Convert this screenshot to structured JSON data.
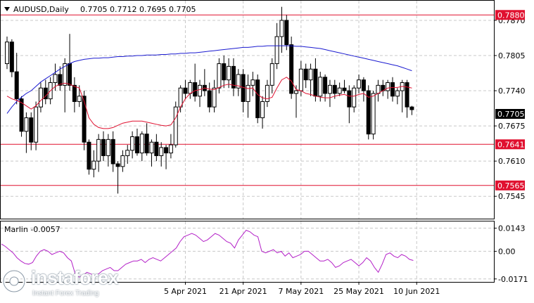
{
  "chart_data": [
    {
      "type": "candlestick",
      "symbol_label": "AUDUSD,Daily",
      "ohlc_label": "0.7705 0.7712 0.7695 0.7705",
      "ylim": [
        0.7505,
        0.7905
      ],
      "y_ticks": [
        "0.7870",
        "0.7805",
        "0.7740",
        "0.7675",
        "0.7610",
        "0.7545"
      ],
      "x_ticks": [
        {
          "label": "5 Apr 2021",
          "index": 37
        },
        {
          "label": "21 Apr 2021",
          "index": 49
        },
        {
          "label": "7 May 2021",
          "index": 61
        },
        {
          "label": "25 May 2021",
          "index": 73
        },
        {
          "label": "10 Jun 2021",
          "index": 85
        }
      ],
      "current_price": "0.7705",
      "horizontal_levels": [
        {
          "value": 0.788,
          "label": "0.7880"
        },
        {
          "value": 0.7641,
          "label": "0.7641"
        },
        {
          "value": 0.7565,
          "label": "0.7565"
        }
      ],
      "colors": {
        "bull": "#ffffff",
        "bear": "#000000",
        "ma_fast": "#e0102f",
        "ma_slow": "#1a1ad0",
        "level": "#e0102f",
        "oscillator": "#b31fc7",
        "grid": "#c8c8c8"
      },
      "candles": [
        [
          0.779,
          0.784,
          0.778,
          0.783
        ],
        [
          0.783,
          0.7835,
          0.7765,
          0.7775
        ],
        [
          0.7775,
          0.781,
          0.7715,
          0.7725
        ],
        [
          0.7725,
          0.773,
          0.7655,
          0.7665
        ],
        [
          0.7665,
          0.77,
          0.7625,
          0.769
        ],
        [
          0.769,
          0.77,
          0.763,
          0.7645
        ],
        [
          0.7645,
          0.772,
          0.763,
          0.771
        ],
        [
          0.771,
          0.7755,
          0.77,
          0.7745
        ],
        [
          0.7745,
          0.776,
          0.7715,
          0.7725
        ],
        [
          0.7725,
          0.7765,
          0.7715,
          0.7755
        ],
        [
          0.7755,
          0.779,
          0.774,
          0.777
        ],
        [
          0.777,
          0.7785,
          0.774,
          0.775
        ],
        [
          0.775,
          0.78,
          0.77,
          0.779
        ],
        [
          0.779,
          0.7845,
          0.774,
          0.775
        ],
        [
          0.775,
          0.7765,
          0.77,
          0.772
        ],
        [
          0.772,
          0.775,
          0.771,
          0.773
        ],
        [
          0.773,
          0.774,
          0.763,
          0.7645
        ],
        [
          0.7645,
          0.765,
          0.7585,
          0.7595
        ],
        [
          0.7595,
          0.763,
          0.758,
          0.761
        ],
        [
          0.761,
          0.766,
          0.759,
          0.765
        ],
        [
          0.765,
          0.7665,
          0.761,
          0.762
        ],
        [
          0.762,
          0.766,
          0.76,
          0.765
        ],
        [
          0.765,
          0.7665,
          0.759,
          0.7605
        ],
        [
          0.7605,
          0.761,
          0.755,
          0.76
        ],
        [
          0.76,
          0.763,
          0.759,
          0.762
        ],
        [
          0.762,
          0.764,
          0.7605,
          0.763
        ],
        [
          0.763,
          0.7665,
          0.7615,
          0.7655
        ],
        [
          0.7655,
          0.767,
          0.762,
          0.7625
        ],
        [
          0.7625,
          0.7665,
          0.761,
          0.766
        ],
        [
          0.766,
          0.768,
          0.762,
          0.7625
        ],
        [
          0.7625,
          0.765,
          0.76,
          0.7645
        ],
        [
          0.7645,
          0.766,
          0.761,
          0.762
        ],
        [
          0.762,
          0.7645,
          0.76,
          0.7635
        ],
        [
          0.7635,
          0.764,
          0.7595,
          0.7625
        ],
        [
          0.7625,
          0.766,
          0.7615,
          0.764
        ],
        [
          0.764,
          0.772,
          0.7635,
          0.771
        ],
        [
          0.771,
          0.775,
          0.77,
          0.7745
        ],
        [
          0.7745,
          0.776,
          0.7725,
          0.7735
        ],
        [
          0.7735,
          0.776,
          0.7725,
          0.7755
        ],
        [
          0.7755,
          0.779,
          0.772,
          0.773
        ],
        [
          0.773,
          0.776,
          0.771,
          0.775
        ],
        [
          0.775,
          0.778,
          0.773,
          0.774
        ],
        [
          0.774,
          0.7755,
          0.77,
          0.771
        ],
        [
          0.771,
          0.776,
          0.77,
          0.7745
        ],
        [
          0.7745,
          0.78,
          0.7735,
          0.779
        ],
        [
          0.779,
          0.7805,
          0.7745,
          0.776
        ],
        [
          0.776,
          0.78,
          0.7745,
          0.7785
        ],
        [
          0.7785,
          0.78,
          0.773,
          0.7745
        ],
        [
          0.7745,
          0.778,
          0.773,
          0.777
        ],
        [
          0.777,
          0.778,
          0.77,
          0.772
        ],
        [
          0.772,
          0.777,
          0.769,
          0.775
        ],
        [
          0.775,
          0.7775,
          0.773,
          0.776
        ],
        [
          0.776,
          0.777,
          0.768,
          0.769
        ],
        [
          0.769,
          0.773,
          0.767,
          0.772
        ],
        [
          0.772,
          0.776,
          0.771,
          0.775
        ],
        [
          0.775,
          0.78,
          0.7735,
          0.779
        ],
        [
          0.779,
          0.7865,
          0.778,
          0.784
        ],
        [
          0.784,
          0.7895,
          0.781,
          0.787
        ],
        [
          0.787,
          0.788,
          0.7815,
          0.7825
        ],
        [
          0.7825,
          0.784,
          0.7725,
          0.7735
        ],
        [
          0.7735,
          0.775,
          0.769,
          0.774
        ],
        [
          0.774,
          0.7795,
          0.773,
          0.778
        ],
        [
          0.778,
          0.779,
          0.7745,
          0.776
        ],
        [
          0.776,
          0.779,
          0.773,
          0.778
        ],
        [
          0.778,
          0.78,
          0.772,
          0.773
        ],
        [
          0.773,
          0.7775,
          0.772,
          0.7765
        ],
        [
          0.7765,
          0.777,
          0.772,
          0.7735
        ],
        [
          0.7735,
          0.776,
          0.771,
          0.775
        ],
        [
          0.775,
          0.776,
          0.7725,
          0.7735
        ],
        [
          0.7735,
          0.7755,
          0.773,
          0.7745
        ],
        [
          0.7745,
          0.776,
          0.7735,
          0.774
        ],
        [
          0.774,
          0.775,
          0.768,
          0.771
        ],
        [
          0.771,
          0.775,
          0.77,
          0.7745
        ],
        [
          0.7745,
          0.777,
          0.7735,
          0.776
        ],
        [
          0.776,
          0.7765,
          0.772,
          0.774
        ],
        [
          0.774,
          0.775,
          0.765,
          0.766
        ],
        [
          0.766,
          0.774,
          0.765,
          0.7735
        ],
        [
          0.7735,
          0.776,
          0.772,
          0.775
        ],
        [
          0.775,
          0.776,
          0.773,
          0.774
        ],
        [
          0.774,
          0.776,
          0.7725,
          0.7755
        ],
        [
          0.7755,
          0.7765,
          0.772,
          0.773
        ],
        [
          0.773,
          0.7745,
          0.7715,
          0.774
        ],
        [
          0.774,
          0.776,
          0.77,
          0.7755
        ],
        [
          0.7755,
          0.776,
          0.769,
          0.771
        ],
        [
          0.771,
          0.7712,
          0.7695,
          0.7705
        ]
      ],
      "ma_fast": [
        0.773,
        0.7725,
        0.7722,
        0.7718,
        0.7712,
        0.7706,
        0.7712,
        0.7722,
        0.773,
        0.774,
        0.7748,
        0.7752,
        0.7754,
        0.7752,
        0.7748,
        0.7745,
        0.772,
        0.769,
        0.7678,
        0.7672,
        0.767,
        0.767,
        0.7672,
        0.7676,
        0.768,
        0.7682,
        0.7684,
        0.7684,
        0.7684,
        0.7682,
        0.768,
        0.7678,
        0.7676,
        0.7675,
        0.7677,
        0.769,
        0.771,
        0.7725,
        0.7735,
        0.774,
        0.7742,
        0.7745,
        0.7743,
        0.7742,
        0.7746,
        0.775,
        0.7752,
        0.775,
        0.7749,
        0.7746,
        0.7744,
        0.7745,
        0.7733,
        0.7727,
        0.7725,
        0.7728,
        0.7745,
        0.776,
        0.7765,
        0.7758,
        0.7742,
        0.774,
        0.7735,
        0.7733,
        0.773,
        0.7728,
        0.7727,
        0.7727,
        0.773,
        0.7732,
        0.7733,
        0.773,
        0.773,
        0.7733,
        0.7735,
        0.7728,
        0.773,
        0.7735,
        0.774,
        0.7745,
        0.7746,
        0.7746,
        0.7748,
        0.7747,
        0.7745
      ],
      "ma_slow": [
        0.7698,
        0.771,
        0.772,
        0.7728,
        0.7735,
        0.774,
        0.7748,
        0.7756,
        0.7762,
        0.7768,
        0.7774,
        0.778,
        0.7785,
        0.779,
        0.7794,
        0.7796,
        0.7798,
        0.7799,
        0.78,
        0.78,
        0.7801,
        0.7801,
        0.7802,
        0.7803,
        0.7803,
        0.7804,
        0.7804,
        0.7805,
        0.7805,
        0.7806,
        0.7806,
        0.7806,
        0.7807,
        0.7807,
        0.7808,
        0.7808,
        0.7809,
        0.7809,
        0.781,
        0.781,
        0.7811,
        0.7812,
        0.7813,
        0.7814,
        0.7815,
        0.7816,
        0.7817,
        0.7818,
        0.7819,
        0.782,
        0.782,
        0.7821,
        0.7822,
        0.7822,
        0.7823,
        0.7823,
        0.7823,
        0.7823,
        0.7823,
        0.7823,
        0.7822,
        0.7822,
        0.7821,
        0.782,
        0.7819,
        0.7818,
        0.7816,
        0.7814,
        0.7812,
        0.781,
        0.7808,
        0.7806,
        0.7804,
        0.7802,
        0.78,
        0.7798,
        0.7796,
        0.7794,
        0.7792,
        0.779,
        0.7788,
        0.7786,
        0.7783,
        0.778,
        0.7777
      ]
    },
    {
      "type": "line",
      "indicator_label": "Marlin -0.0057",
      "ylim": [
        -0.0185,
        0.018
      ],
      "y_ticks": [
        "0.0143",
        "0.00",
        "-0.0171"
      ],
      "values": [
        0.0045,
        0.003,
        0.001,
        -0.001,
        -0.004,
        -0.006,
        -0.0075,
        -0.008,
        -0.007,
        -0.003,
        0.0,
        0.001,
        0.0,
        -0.002,
        -0.001,
        0.0,
        -0.001,
        -0.004,
        -0.006,
        -0.014,
        -0.016,
        -0.015,
        -0.013,
        -0.014,
        -0.015,
        -0.014,
        -0.012,
        -0.011,
        -0.01,
        -0.012,
        -0.012,
        -0.01,
        -0.008,
        -0.007,
        -0.006,
        -0.006,
        -0.005,
        -0.007,
        -0.005,
        -0.004,
        -0.005,
        -0.006,
        -0.004,
        -0.002,
        0.0,
        0.002,
        0.006,
        0.009,
        0.01,
        0.011,
        0.01,
        0.008,
        0.006,
        0.007,
        0.009,
        0.011,
        0.01,
        0.008,
        0.006,
        0.005,
        0.002,
        0.007,
        0.01,
        0.013,
        0.012,
        0.01,
        0.009,
        0.0,
        -0.001,
        0.0,
        0.001,
        -0.001,
        0.0,
        -0.003,
        -0.001,
        -0.004,
        -0.003,
        -0.002,
        0.0,
        0.0,
        -0.002,
        -0.004,
        -0.006,
        -0.006,
        -0.005,
        -0.007,
        -0.01,
        -0.009,
        -0.007,
        -0.006,
        -0.005,
        -0.007,
        -0.009,
        -0.007,
        -0.004,
        -0.006,
        -0.01,
        -0.013,
        -0.008,
        -0.002,
        -0.001,
        -0.003,
        -0.004,
        -0.002,
        -0.003,
        -0.005,
        -0.0057
      ]
    }
  ],
  "watermark": {
    "brand": "instaforex",
    "tagline": "Instant Forex Trading"
  }
}
